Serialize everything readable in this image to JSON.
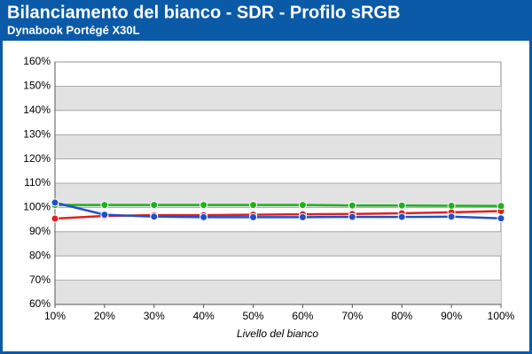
{
  "chart_data": {
    "type": "line",
    "title": "Bilanciamento del bianco - SDR - Profilo sRGB",
    "subtitle": "Dynabook Portégé X30L",
    "x_label": "Livello del bianco",
    "categories": [
      "10%",
      "20%",
      "30%",
      "40%",
      "50%",
      "60%",
      "70%",
      "80%",
      "90%",
      "100%"
    ],
    "series": [
      {
        "color": "#e02020",
        "values": [
          95.4,
          96.5,
          96.8,
          96.8,
          97,
          97.2,
          97.3,
          97.6,
          98,
          98.5
        ]
      },
      {
        "color": "#20b020",
        "values": [
          101,
          101,
          101,
          101,
          101,
          101,
          100.8,
          100.8,
          100.7,
          100.6
        ]
      },
      {
        "color": "#2050c8",
        "values": [
          102,
          97,
          96.2,
          96,
          96,
          96,
          96.1,
          96.1,
          96.2,
          95.5
        ]
      }
    ],
    "ylim": [
      60,
      160
    ],
    "yticks": [
      {
        "value": 60,
        "label": "60%"
      },
      {
        "value": 70,
        "label": "70%"
      },
      {
        "value": 80,
        "label": "80%"
      },
      {
        "value": 90,
        "label": "90%"
      },
      {
        "value": 100,
        "label": "100%"
      },
      {
        "value": 110,
        "label": "110%"
      },
      {
        "value": 120,
        "label": "120%"
      },
      {
        "value": 130,
        "label": "130%"
      },
      {
        "value": 140,
        "label": "140%"
      },
      {
        "value": 150,
        "label": "150%"
      },
      {
        "value": 160,
        "label": "160%"
      }
    ],
    "grid": true
  }
}
